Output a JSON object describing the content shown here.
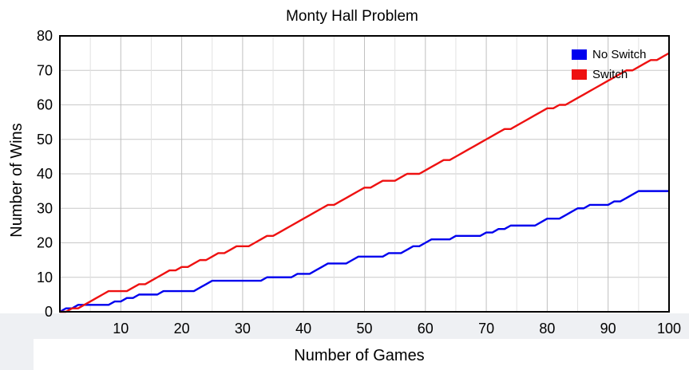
{
  "chart_data": {
    "type": "line",
    "title": "Monty Hall Problem",
    "xlabel": "Number of Games",
    "ylabel": "Number of Wins",
    "xlim": [
      0,
      100
    ],
    "ylim": [
      0,
      80
    ],
    "xticks": [
      10,
      20,
      30,
      40,
      50,
      60,
      70,
      80,
      90,
      100
    ],
    "yticks": [
      0,
      10,
      20,
      30,
      40,
      50,
      60,
      70,
      80
    ],
    "grid": true,
    "legend_position": "top-right",
    "series": [
      {
        "name": "No Switch",
        "color": "#0000ee",
        "x": [
          0,
          1,
          2,
          3,
          4,
          5,
          6,
          7,
          8,
          9,
          10,
          11,
          12,
          13,
          14,
          15,
          16,
          17,
          18,
          19,
          20,
          21,
          22,
          23,
          24,
          25,
          26,
          27,
          28,
          29,
          30,
          31,
          32,
          33,
          34,
          35,
          36,
          37,
          38,
          39,
          40,
          41,
          42,
          43,
          44,
          45,
          46,
          47,
          48,
          49,
          50,
          51,
          52,
          53,
          54,
          55,
          56,
          57,
          58,
          59,
          60,
          61,
          62,
          63,
          64,
          65,
          66,
          67,
          68,
          69,
          70,
          71,
          72,
          73,
          74,
          75,
          76,
          77,
          78,
          79,
          80,
          81,
          82,
          83,
          84,
          85,
          86,
          87,
          88,
          89,
          90,
          91,
          92,
          93,
          94,
          95,
          96,
          97,
          98,
          99,
          100
        ],
        "values": [
          0,
          1,
          1,
          2,
          2,
          2,
          2,
          2,
          2,
          3,
          3,
          4,
          4,
          5,
          5,
          5,
          5,
          6,
          6,
          6,
          6,
          6,
          6,
          7,
          8,
          9,
          9,
          9,
          9,
          9,
          9,
          9,
          9,
          9,
          10,
          10,
          10,
          10,
          10,
          11,
          11,
          11,
          12,
          13,
          14,
          14,
          14,
          14,
          15,
          16,
          16,
          16,
          16,
          16,
          17,
          17,
          17,
          18,
          19,
          19,
          20,
          21,
          21,
          21,
          21,
          22,
          22,
          22,
          22,
          22,
          23,
          23,
          24,
          24,
          25,
          25,
          25,
          25,
          25,
          26,
          27,
          27,
          27,
          28,
          29,
          30,
          30,
          31,
          31,
          31,
          31,
          32,
          32,
          33,
          34,
          35,
          35,
          35,
          35,
          35,
          35
        ]
      },
      {
        "name": "Switch",
        "color": "#ee1111",
        "x": [
          0,
          1,
          2,
          3,
          4,
          5,
          6,
          7,
          8,
          9,
          10,
          11,
          12,
          13,
          14,
          15,
          16,
          17,
          18,
          19,
          20,
          21,
          22,
          23,
          24,
          25,
          26,
          27,
          28,
          29,
          30,
          31,
          32,
          33,
          34,
          35,
          36,
          37,
          38,
          39,
          40,
          41,
          42,
          43,
          44,
          45,
          46,
          47,
          48,
          49,
          50,
          51,
          52,
          53,
          54,
          55,
          56,
          57,
          58,
          59,
          60,
          61,
          62,
          63,
          64,
          65,
          66,
          67,
          68,
          69,
          70,
          71,
          72,
          73,
          74,
          75,
          76,
          77,
          78,
          79,
          80,
          81,
          82,
          83,
          84,
          85,
          86,
          87,
          88,
          89,
          90,
          91,
          92,
          93,
          94,
          95,
          96,
          97,
          98,
          99,
          100
        ],
        "values": [
          0,
          0,
          1,
          1,
          2,
          3,
          4,
          5,
          6,
          6,
          6,
          6,
          7,
          8,
          8,
          9,
          10,
          11,
          12,
          12,
          13,
          13,
          14,
          15,
          15,
          16,
          17,
          17,
          18,
          19,
          19,
          19,
          20,
          21,
          22,
          22,
          23,
          24,
          25,
          26,
          27,
          28,
          29,
          30,
          31,
          31,
          32,
          33,
          34,
          35,
          36,
          36,
          37,
          38,
          38,
          38,
          39,
          40,
          40,
          40,
          41,
          42,
          43,
          44,
          44,
          45,
          46,
          47,
          48,
          49,
          50,
          51,
          52,
          53,
          53,
          54,
          55,
          56,
          57,
          58,
          59,
          59,
          60,
          60,
          61,
          62,
          63,
          64,
          65,
          66,
          67,
          68,
          69,
          70,
          70,
          71,
          72,
          73,
          73,
          74,
          75
        ]
      }
    ]
  }
}
